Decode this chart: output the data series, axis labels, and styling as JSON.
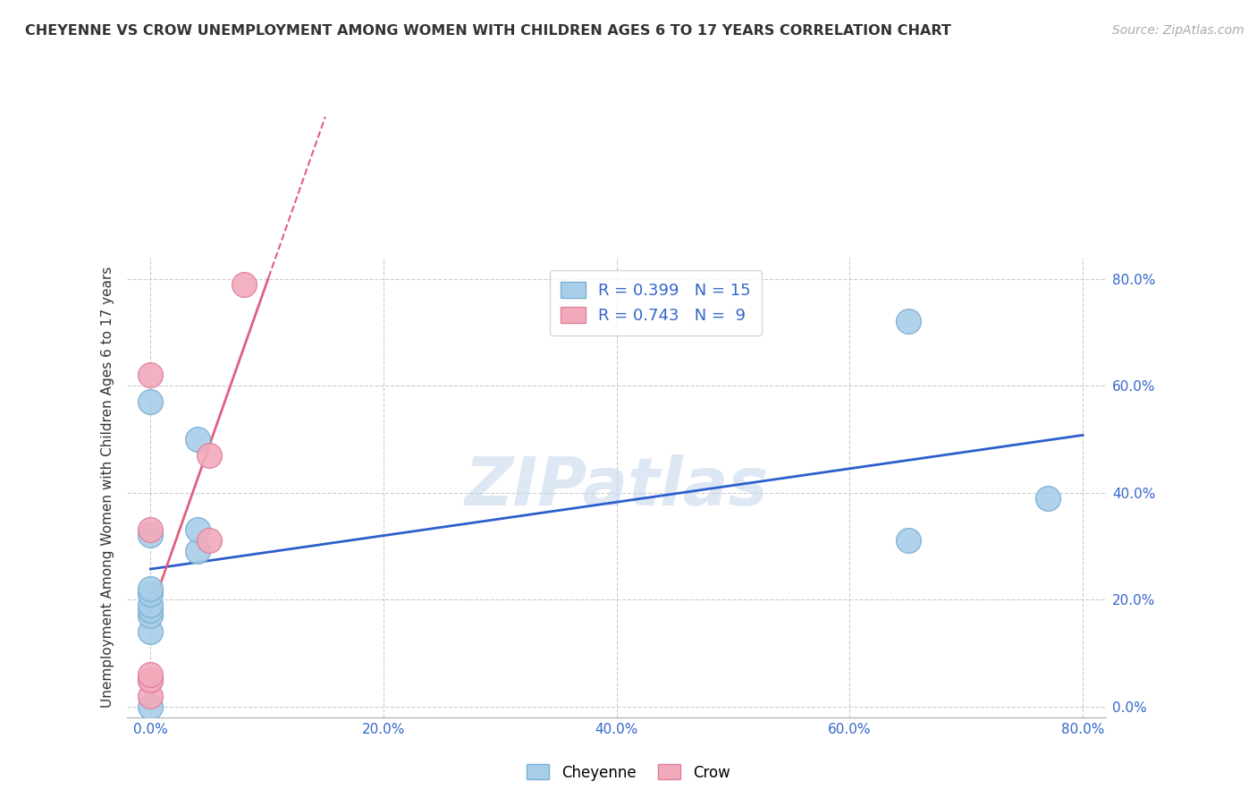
{
  "title": "CHEYENNE VS CROW UNEMPLOYMENT AMONG WOMEN WITH CHILDREN AGES 6 TO 17 YEARS CORRELATION CHART",
  "source": "Source: ZipAtlas.com",
  "ylabel": "Unemployment Among Women with Children Ages 6 to 17 years",
  "xlim": [
    -0.02,
    0.82
  ],
  "ylim": [
    -0.02,
    0.84
  ],
  "xticks": [
    0.0,
    0.2,
    0.4,
    0.6,
    0.8
  ],
  "yticks": [
    0.0,
    0.2,
    0.4,
    0.6,
    0.8
  ],
  "xtick_labels": [
    "0.0%",
    "20.0%",
    "40.0%",
    "60.0%",
    "80.0%"
  ],
  "ytick_labels": [
    "0.0%",
    "20.0%",
    "40.0%",
    "60.0%",
    "80.0%"
  ],
  "cheyenne_color": "#A8CDE8",
  "crow_color": "#F2AABB",
  "cheyenne_edge_color": "#7BAFD4",
  "crow_edge_color": "#E080A0",
  "blue_line_color": "#2B5FCC",
  "pink_line_color": "#E06080",
  "tick_label_color": "#3366CC",
  "background_color": "#FFFFFF",
  "grid_color": "#CCCCCC",
  "watermark": "ZIPatlas",
  "watermark_color": "#C8D8EE",
  "legend_label1": "R = 0.399   N = 15",
  "legend_label2": "R = 0.743   N =  9",
  "cheyenne_data_x": [
    0.0,
    0.0,
    0.0,
    0.0,
    0.0,
    0.0,
    0.0,
    0.0,
    0.0,
    0.04,
    0.04,
    0.04,
    0.65,
    0.65,
    0.77
  ],
  "cheyenne_data_y": [
    0.0,
    0.14,
    0.17,
    0.18,
    0.19,
    0.21,
    0.22,
    0.32,
    0.57,
    0.29,
    0.33,
    0.5,
    0.31,
    0.72,
    0.39
  ],
  "crow_data_x": [
    0.0,
    0.0,
    0.0,
    0.0,
    0.0,
    0.0,
    0.05,
    0.05,
    0.08
  ],
  "crow_data_y": [
    0.02,
    0.05,
    0.05,
    0.06,
    0.33,
    0.62,
    0.31,
    0.47,
    0.79
  ],
  "title_fontsize": 11.5,
  "axis_label_fontsize": 11,
  "tick_fontsize": 11,
  "legend_fontsize": 13,
  "source_fontsize": 10
}
